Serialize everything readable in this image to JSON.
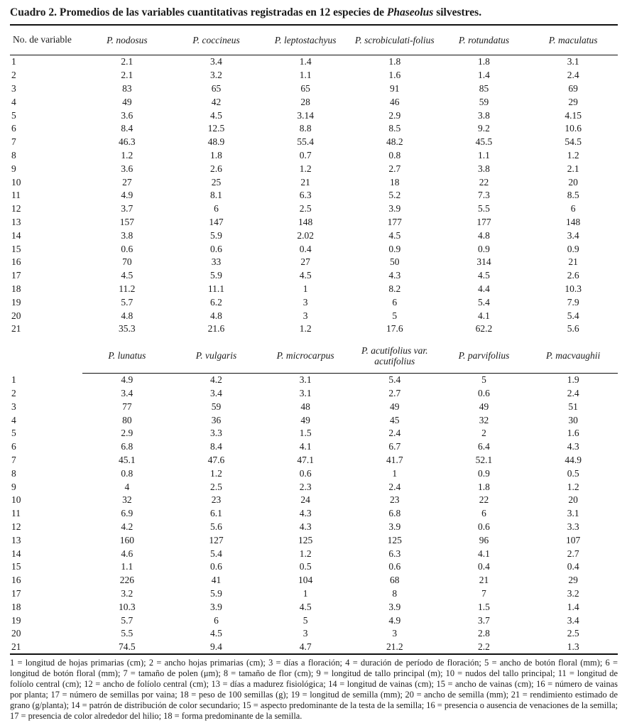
{
  "caption": {
    "part1": "Cuadro 2. Promedios de las variables cuantitativas registradas en 12 especies de ",
    "genus": "Phaseolus",
    "part2": " silvestres."
  },
  "table1": {
    "row_header": "No. de variable",
    "columns": [
      "P. nodosus",
      "P. coccineus",
      "P. leptostachyus",
      "P. scrobiculati-folius",
      "P. rotundatus",
      "P. maculatus"
    ],
    "rows": [
      [
        "1",
        "2.1",
        "3.4",
        "1.4",
        "1.8",
        "1.8",
        "3.1"
      ],
      [
        "2",
        "2.1",
        "3.2",
        "1.1",
        "1.6",
        "1.4",
        "2.4"
      ],
      [
        "3",
        "83",
        "65",
        "65",
        "91",
        "85",
        "69"
      ],
      [
        "4",
        "49",
        "42",
        "28",
        "46",
        "59",
        "29"
      ],
      [
        "5",
        "3.6",
        "4.5",
        "3.14",
        "2.9",
        "3.8",
        "4.15"
      ],
      [
        "6",
        "8.4",
        "12.5",
        "8.8",
        "8.5",
        "9.2",
        "10.6"
      ],
      [
        "7",
        "46.3",
        "48.9",
        "55.4",
        "48.2",
        "45.5",
        "54.5"
      ],
      [
        "8",
        "1.2",
        "1.8",
        "0.7",
        "0.8",
        "1.1",
        "1.2"
      ],
      [
        "9",
        "3.6",
        "2.6",
        "1.2",
        "2.7",
        "3.8",
        "2.1"
      ],
      [
        "10",
        "27",
        "25",
        "21",
        "18",
        "22",
        "20"
      ],
      [
        "11",
        "4.9",
        "8.1",
        "6.3",
        "5.2",
        "7.3",
        "8.5"
      ],
      [
        "12",
        "3.7",
        "6",
        "2.5",
        "3.9",
        "5.5",
        "6"
      ],
      [
        "13",
        "157",
        "147",
        "148",
        "177",
        "177",
        "148"
      ],
      [
        "14",
        "3.8",
        "5.9",
        "2.02",
        "4.5",
        "4.8",
        "3.4"
      ],
      [
        "15",
        "0.6",
        "0.6",
        "0.4",
        "0.9",
        "0.9",
        "0.9"
      ],
      [
        "16",
        "70",
        "33",
        "27",
        "50",
        "314",
        "21"
      ],
      [
        "17",
        "4.5",
        "5.9",
        "4.5",
        "4.3",
        "4.5",
        "2.6"
      ],
      [
        "18",
        "11.2",
        "11.1",
        "1",
        "8.2",
        "4.4",
        "10.3"
      ],
      [
        "19",
        "5.7",
        "6.2",
        "3",
        "6",
        "5.4",
        "7.9"
      ],
      [
        "20",
        "4.8",
        "4.8",
        "3",
        "5",
        "4.1",
        "5.4"
      ],
      [
        "21",
        "35.3",
        "21.6",
        "1.2",
        "17.6",
        "62.2",
        "5.6"
      ]
    ]
  },
  "table2": {
    "row_header": "",
    "columns": [
      "P. lunatus",
      "P. vulgaris",
      "P. microcarpus",
      "P. acutifolius var. acutifolius",
      "P. parvifolius",
      "P. macvaughii"
    ],
    "rows": [
      [
        "1",
        "4.9",
        "4.2",
        "3.1",
        "5.4",
        "5",
        "1.9"
      ],
      [
        "2",
        "3.4",
        "3.4",
        "3.1",
        "2.7",
        "0.6",
        "2.4"
      ],
      [
        "3",
        "77",
        "59",
        "48",
        "49",
        "49",
        "51"
      ],
      [
        "4",
        "80",
        "36",
        "49",
        "45",
        "32",
        "30"
      ],
      [
        "5",
        "2.9",
        "3.3",
        "1.5",
        "2.4",
        "2",
        "1.6"
      ],
      [
        "6",
        "6.8",
        "8.4",
        "4.1",
        "6.7",
        "6.4",
        "4.3"
      ],
      [
        "7",
        "45.1",
        "47.6",
        "47.1",
        "41.7",
        "52.1",
        "44.9"
      ],
      [
        "8",
        "0.8",
        "1.2",
        "0.6",
        "1",
        "0.9",
        "0.5"
      ],
      [
        "9",
        "4",
        "2.5",
        "2.3",
        "2.4",
        "1.8",
        "1.2"
      ],
      [
        "10",
        "32",
        "23",
        "24",
        "23",
        "22",
        "20"
      ],
      [
        "11",
        "6.9",
        "6.1",
        "4.3",
        "6.8",
        "6",
        "3.1"
      ],
      [
        "12",
        "4.2",
        "5.6",
        "4.3",
        "3.9",
        "0.6",
        "3.3"
      ],
      [
        "13",
        "160",
        "127",
        "125",
        "125",
        "96",
        "107"
      ],
      [
        "14",
        "4.6",
        "5.4",
        "1.2",
        "6.3",
        "4.1",
        "2.7"
      ],
      [
        "15",
        "1.1",
        "0.6",
        "0.5",
        "0.6",
        "0.4",
        "0.4"
      ],
      [
        "16",
        "226",
        "41",
        "104",
        "68",
        "21",
        "29"
      ],
      [
        "17",
        "3.2",
        "5.9",
        "1",
        "8",
        "7",
        "3.2"
      ],
      [
        "18",
        "10.3",
        "3.9",
        "4.5",
        "3.9",
        "1.5",
        "1.4"
      ],
      [
        "19",
        "5.7",
        "6",
        "5",
        "4.9",
        "3.7",
        "3.4"
      ],
      [
        "20",
        "5.5",
        "4.5",
        "3",
        "3",
        "2.8",
        "2.5"
      ],
      [
        "21",
        "74.5",
        "9.4",
        "4.7",
        "21.2",
        "2.2",
        "1.3"
      ]
    ]
  },
  "footnote": "1 = longitud de hojas primarias (cm); 2 = ancho hojas primarias (cm); 3 = días a floración; 4 = duración de período de floración; 5 = ancho de botón floral (mm); 6 = longitud de botón floral (mm); 7 = tamaño de polen (μm); 8 = tamaño de flor (cm); 9 = longitud de tallo principal (m); 10 = nudos del tallo principal; 11 = longitud de folíolo central (cm); 12 = ancho de folíolo central (cm); 13 = días a madurez fisiológica; 14 = longitud de vainas (cm); 15 = ancho de vainas (cm); 16 = número de vainas por planta; 17 = número de semillas por vaina; 18 = peso de 100 semillas (g); 19 = longitud de semilla (mm); 20 = ancho de semilla (mm); 21 = rendimiento estimado de grano (g/planta); 14 = patrón de distribución de color secundario; 15 = aspecto predominante de la testa de la semilla; 16 = presencia o ausencia de venaciones de la semilla; 17 = presencia de color alrededor del hilio; 18 = forma predominante de la semilla."
}
